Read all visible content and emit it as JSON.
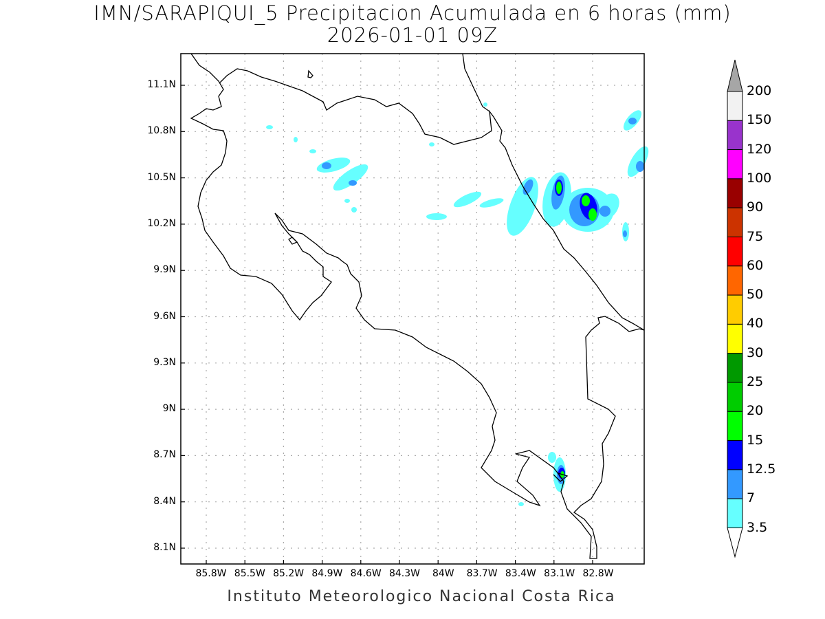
{
  "title": {
    "line1": "IMN/SARAPIQUI_5 Precipitacion Acumulada en 6 horas (mm)",
    "line2": "2026-01-01 09Z"
  },
  "y_ticks": [
    "11.1N",
    "10.8N",
    "10.5N",
    "10.2N",
    "9.9N",
    "9.6N",
    "9.3N",
    "9N",
    "8.7N",
    "8.4N",
    "8.1N"
  ],
  "x_ticks": [
    "85.8W",
    "85.5W",
    "85.2W",
    "84.9W",
    "84.6W",
    "84.3W",
    "84W",
    "83.7W",
    "83.4W",
    "83.1W",
    "82.8W"
  ],
  "colorbar": {
    "labels": [
      "200",
      "150",
      "120",
      "100",
      "90",
      "75",
      "60",
      "50",
      "40",
      "30",
      "25",
      "20",
      "15",
      "12.5",
      "7",
      "3.5"
    ],
    "colors": [
      "#f2f2f2",
      "#9933cc",
      "#ff00ff",
      "#990000",
      "#cc3300",
      "#ff0000",
      "#ff6600",
      "#ffcc00",
      "#ffff00",
      "#009900",
      "#00cc00",
      "#00ff00",
      "#0000ff",
      "#3399ff",
      "#66ffff"
    ],
    "over_color": "#a6a6a6",
    "under_color": "#ffffff"
  },
  "credit": "Instituto Meteorologico Nacional Costa Rica"
}
